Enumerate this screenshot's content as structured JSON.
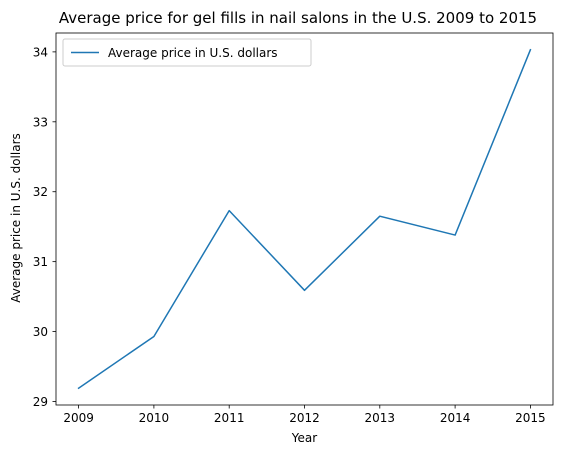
{
  "chart_data": {
    "type": "line",
    "title": "Average price for gel fills in nail salons in the U.S. 2009 to 2015",
    "xlabel": "Year",
    "ylabel": "Average price in U.S. dollars",
    "x": [
      2009,
      2010,
      2011,
      2012,
      2013,
      2014,
      2015
    ],
    "series": [
      {
        "name": "Average price in U.S. dollars",
        "values": [
          29.19,
          29.93,
          31.73,
          30.59,
          31.65,
          31.38,
          34.03
        ],
        "color": "#1f77b4"
      }
    ],
    "x_ticks": [
      "2009",
      "2010",
      "2011",
      "2012",
      "2013",
      "2014",
      "2015"
    ],
    "y_ticks": [
      29,
      30,
      31,
      32,
      33,
      34
    ],
    "xlim": [
      2008.7,
      2015.3
    ],
    "ylim": [
      28.95,
      34.27
    ],
    "grid": false,
    "legend_position": "upper-left"
  }
}
